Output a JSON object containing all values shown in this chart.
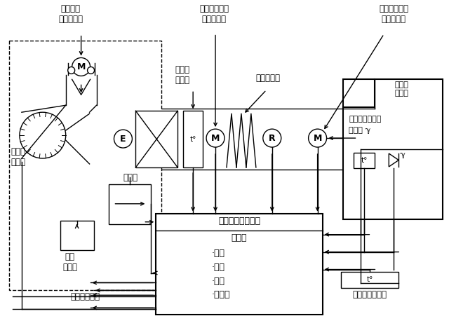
{
  "labels": {
    "intake_motor": "进气控制\n伺服电动机",
    "mix_motor": "空气混合控制\n伺服电动机",
    "airflow_motor": "气流方式控制\n伺服电动机",
    "evap_sensor": "蒸发器\n传感器",
    "water_sensor": "水温传感器",
    "blower": "鼓风机\n电动机",
    "compressor": "压缩机",
    "transistor": "功率\n晶体管",
    "amplifier": "自动空调器放大器",
    "micro": "微电脑",
    "calc": "·计算",
    "store": "·存储",
    "judge": "·判断",
    "timer": "·定时器",
    "indoor_sensor": "车内气温传感器\n传感器 ℽ",
    "outdoor_sensor": "车外气温传感器",
    "solar_sensor": "太阳能\n传感器",
    "note": "仅限某些型号",
    "E": "E",
    "M": "M",
    "R": "R",
    "t": "t°"
  },
  "figsize": [
    6.4,
    4.61
  ],
  "dpi": 100
}
